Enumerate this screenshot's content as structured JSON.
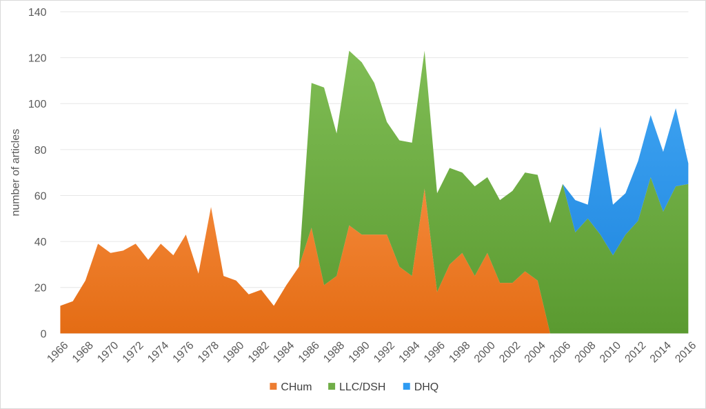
{
  "chart_data": {
    "type": "area",
    "stacked": true,
    "ylabel": "number of articles",
    "xlabel": "",
    "title": "",
    "ylim": [
      0,
      140
    ],
    "yticks": [
      0,
      20,
      40,
      60,
      80,
      100,
      120,
      140
    ],
    "x": [
      1966,
      1967,
      1968,
      1969,
      1970,
      1971,
      1972,
      1973,
      1974,
      1975,
      1976,
      1977,
      1978,
      1979,
      1980,
      1981,
      1982,
      1983,
      1984,
      1985,
      1986,
      1987,
      1988,
      1989,
      1990,
      1991,
      1992,
      1993,
      1994,
      1995,
      1996,
      1997,
      1998,
      1999,
      2000,
      2001,
      2002,
      2003,
      2004,
      2005,
      2006,
      2007,
      2008,
      2009,
      2010,
      2011,
      2012,
      2013,
      2014,
      2015,
      2016
    ],
    "xtick_labels": [
      "1966",
      "1968",
      "1970",
      "1972",
      "1974",
      "1976",
      "1978",
      "1980",
      "1982",
      "1984",
      "1986",
      "1988",
      "1990",
      "1992",
      "1994",
      "1996",
      "1998",
      "2000",
      "2002",
      "2004",
      "2006",
      "2008",
      "2010",
      "2012",
      "2014",
      "2016"
    ],
    "grid": true,
    "legend_position": "bottom",
    "series": [
      {
        "name": "CHum",
        "color": "#ed7d31",
        "values": [
          12,
          14,
          23,
          39,
          35,
          36,
          39,
          32,
          39,
          34,
          43,
          26,
          55,
          25,
          23,
          17,
          19,
          12,
          21,
          29,
          46,
          21,
          25,
          47,
          43,
          43,
          43,
          29,
          25,
          63,
          18,
          30,
          35,
          25,
          35,
          22,
          22,
          27,
          23,
          0,
          0,
          0,
          0,
          0,
          0,
          0,
          0,
          0,
          0,
          0,
          0
        ]
      },
      {
        "name": "LLC/DSH",
        "color": "#70ad47",
        "values": [
          0,
          0,
          0,
          0,
          0,
          0,
          0,
          0,
          0,
          0,
          0,
          0,
          0,
          0,
          0,
          0,
          0,
          0,
          0,
          0,
          63,
          86,
          62,
          76,
          75,
          66,
          49,
          55,
          58,
          60,
          43,
          42,
          35,
          39,
          33,
          36,
          40,
          43,
          46,
          48,
          65,
          44,
          50,
          43,
          34,
          43,
          49,
          68,
          53,
          64,
          65
        ]
      },
      {
        "name": "DHQ",
        "color": "#2e9bf2",
        "values": [
          0,
          0,
          0,
          0,
          0,
          0,
          0,
          0,
          0,
          0,
          0,
          0,
          0,
          0,
          0,
          0,
          0,
          0,
          0,
          0,
          0,
          0,
          0,
          0,
          0,
          0,
          0,
          0,
          0,
          0,
          0,
          0,
          0,
          0,
          0,
          0,
          0,
          0,
          0,
          0,
          0,
          14,
          6,
          47,
          22,
          18,
          26,
          27,
          26,
          34,
          9
        ]
      }
    ]
  }
}
